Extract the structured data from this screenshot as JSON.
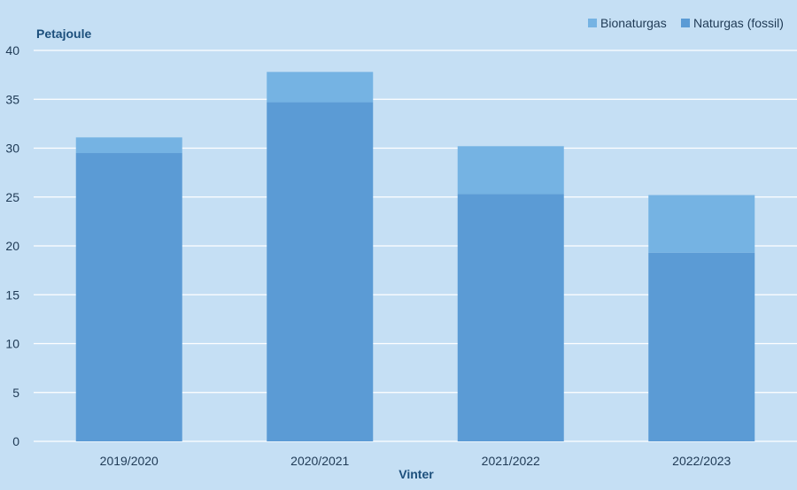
{
  "chart_data": {
    "type": "bar",
    "stacked": true,
    "categories": [
      "2019/2020",
      "2020/2021",
      "2021/2022",
      "2022/2023"
    ],
    "series": [
      {
        "name": "Naturgas (fossil)",
        "values": [
          29.5,
          34.7,
          25.3,
          19.3
        ],
        "color": "#5b9bd5"
      },
      {
        "name": "Bionaturgas",
        "values": [
          1.6,
          3.1,
          4.9,
          5.9
        ],
        "color": "#75b3e3"
      }
    ],
    "xlabel": "Vinter",
    "ylabel": "Petajoule",
    "ylim": [
      0,
      40
    ],
    "yticks": [
      "0",
      "5",
      "10",
      "15",
      "20",
      "25",
      "30",
      "35",
      "40"
    ],
    "grid": true,
    "legend_position": "top-right",
    "legend_order": [
      "Bionaturgas",
      "Naturgas (fossil)"
    ]
  },
  "colors": {
    "background": "#c5dff4",
    "gridline": "#ffffff",
    "axis_title": "#1c4f7c",
    "tick_text": "#1f3a55"
  }
}
